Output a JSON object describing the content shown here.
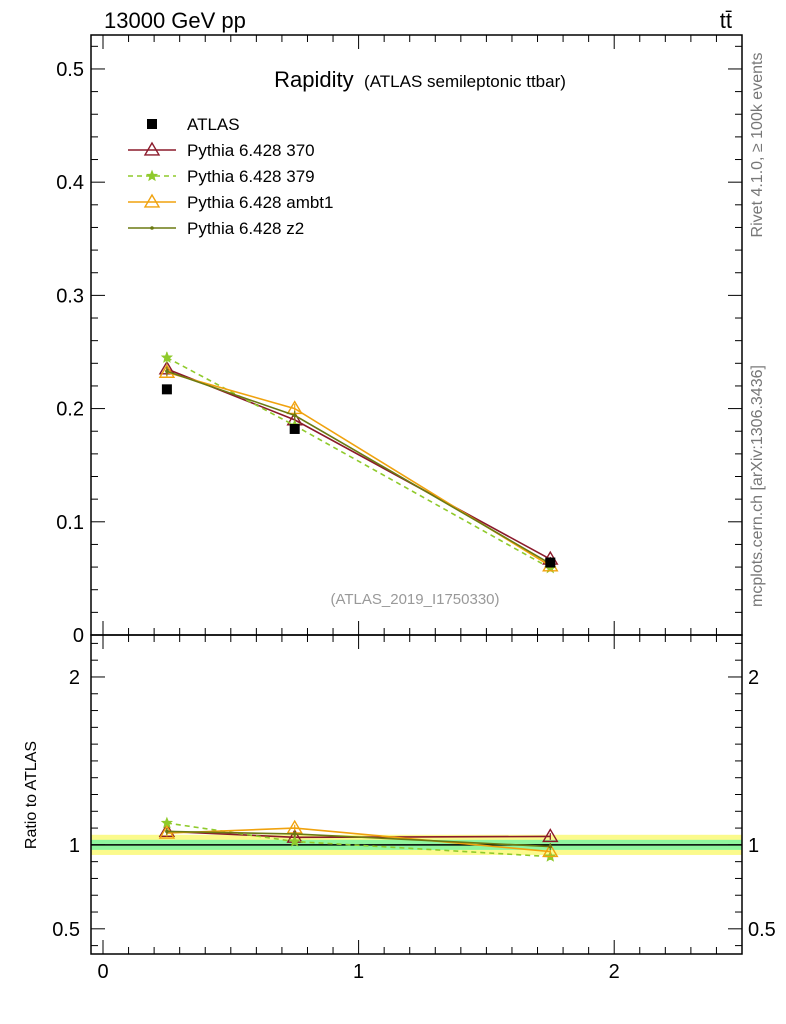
{
  "header": {
    "energy": "13000 GeV pp",
    "process": "tt̄"
  },
  "side_labels": {
    "rivet": "Rivet 4.1.0, ≥ 100k events",
    "mcplots": "mcplots.cern.ch [arXiv:1306.3436]"
  },
  "chart_data": {
    "type": "line",
    "title": "Rapidity",
    "subtitle": "(ATLAS semileptonic ttbar)",
    "analysis_id": "(ATLAS_2019_I1750330)",
    "xlabel": "",
    "ylabel_ratio": "Ratio to ATLAS",
    "xlim": [
      0,
      2.5
    ],
    "ylim_main": [
      0,
      0.53
    ],
    "ylim_ratio": [
      0.35,
      2.25
    ],
    "x_ticks": [
      0,
      1,
      2
    ],
    "x_tick_labels": [
      "0",
      "1",
      "2"
    ],
    "y_ticks_main": [
      0.1,
      0.2,
      0.3,
      0.4,
      0.5
    ],
    "y_tick_labels_main": [
      "0.1",
      "0.2",
      "0.3",
      "0.4",
      "0.5"
    ],
    "y_zero_label": "0",
    "y_ticks_ratio": [
      0.5,
      1,
      2
    ],
    "y_tick_labels_ratio": [
      "0.5",
      "1",
      "2"
    ],
    "x": [
      0.25,
      0.75,
      1.75
    ],
    "data": {
      "name": "ATLAS",
      "values": [
        0.217,
        0.182,
        0.064
      ],
      "band_inner": 0.03,
      "band_outer": 0.06,
      "color": "#000000"
    },
    "series": [
      {
        "name": "Pythia 6.428 370",
        "values": [
          0.235,
          0.19,
          0.067
        ],
        "errors": [
          0.004,
          0.004,
          0.002
        ],
        "ratio": [
          1.08,
          1.045,
          1.05
        ],
        "color": "#8b1a2b",
        "marker": "triangle-open",
        "dash": ""
      },
      {
        "name": "Pythia 6.428 379",
        "values": [
          0.245,
          0.185,
          0.059
        ],
        "errors": [
          0.005,
          0.004,
          0.002
        ],
        "ratio": [
          1.13,
          1.02,
          0.93
        ],
        "color": "#8fca2b",
        "marker": "star",
        "dash": "5,4"
      },
      {
        "name": "Pythia 6.428 ambt1",
        "values": [
          0.232,
          0.2,
          0.061
        ],
        "errors": [
          0.004,
          0.004,
          0.002
        ],
        "ratio": [
          1.07,
          1.1,
          0.96
        ],
        "color": "#f0a20e",
        "marker": "triangle-open",
        "dash": ""
      },
      {
        "name": "Pythia 6.428 z2",
        "values": [
          0.233,
          0.194,
          0.063
        ],
        "errors": [
          0.004,
          0.004,
          0.002
        ],
        "ratio": [
          1.08,
          1.065,
          0.99
        ],
        "color": "#6b7a12",
        "marker": "dot",
        "dash": ""
      }
    ]
  }
}
